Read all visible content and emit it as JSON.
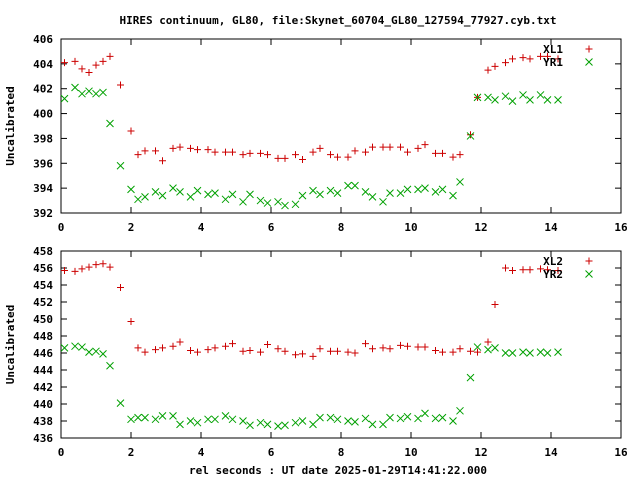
{
  "title": "HIRES continuum, GL80, file:Skynet_60704_GL80_127594_77927.cyb.txt",
  "xlabel": "rel seconds : UT date 2025-01-29T14:41:22.000",
  "colors": {
    "red": "#cc0000",
    "green": "#00a000",
    "axis": "#000000"
  },
  "chart_data": [
    {
      "type": "scatter",
      "ylabel": "Uncalibrated",
      "xlim": [
        0,
        16
      ],
      "ylim": [
        392,
        406
      ],
      "xticks": [
        0,
        2,
        4,
        6,
        8,
        10,
        12,
        14,
        16
      ],
      "yticks": [
        392,
        394,
        396,
        398,
        400,
        402,
        404,
        406
      ],
      "legend_position": "top-right",
      "series": [
        {
          "name": "XL1",
          "marker": "plus",
          "color": "#cc0000",
          "x": [
            0.1,
            0.4,
            0.6,
            0.8,
            1.0,
            1.2,
            1.4,
            1.7,
            2.0,
            2.2,
            2.4,
            2.7,
            2.9,
            3.2,
            3.4,
            3.7,
            3.9,
            4.2,
            4.4,
            4.7,
            4.9,
            5.2,
            5.4,
            5.7,
            5.9,
            6.2,
            6.4,
            6.7,
            6.9,
            7.2,
            7.4,
            7.7,
            7.9,
            8.2,
            8.4,
            8.7,
            8.9,
            9.2,
            9.4,
            9.7,
            9.9,
            10.2,
            10.4,
            10.7,
            10.9,
            11.2,
            11.4,
            11.7,
            11.9,
            12.2,
            12.4,
            12.7,
            12.9,
            13.2,
            13.4,
            13.7,
            13.9,
            14.2
          ],
          "y": [
            404.1,
            404.2,
            403.6,
            403.3,
            403.9,
            404.2,
            404.6,
            402.3,
            398.6,
            396.7,
            397.0,
            397.0,
            396.2,
            397.2,
            397.3,
            397.2,
            397.1,
            397.1,
            396.9,
            396.9,
            396.9,
            396.7,
            396.8,
            396.8,
            396.7,
            396.4,
            396.4,
            396.7,
            396.3,
            396.9,
            397.2,
            396.7,
            396.5,
            396.5,
            397.0,
            396.9,
            397.3,
            397.3,
            397.3,
            397.3,
            396.9,
            397.2,
            397.5,
            396.8,
            396.8,
            396.5,
            396.7,
            398.3,
            401.3,
            403.5,
            403.8,
            404.1,
            404.4,
            404.5,
            404.4,
            404.6,
            404.6,
            404.4
          ]
        },
        {
          "name": "YR1",
          "marker": "cross",
          "color": "#00a000",
          "x": [
            0.1,
            0.4,
            0.6,
            0.8,
            1.0,
            1.2,
            1.4,
            1.7,
            2.0,
            2.2,
            2.4,
            2.7,
            2.9,
            3.2,
            3.4,
            3.7,
            3.9,
            4.2,
            4.4,
            4.7,
            4.9,
            5.2,
            5.4,
            5.7,
            5.9,
            6.2,
            6.4,
            6.7,
            6.9,
            7.2,
            7.4,
            7.7,
            7.9,
            8.2,
            8.4,
            8.7,
            8.9,
            9.2,
            9.4,
            9.7,
            9.9,
            10.2,
            10.4,
            10.7,
            10.9,
            11.2,
            11.4,
            11.7,
            11.9,
            12.2,
            12.4,
            12.7,
            12.9,
            13.2,
            13.4,
            13.7,
            13.9,
            14.2
          ],
          "y": [
            401.2,
            402.1,
            401.6,
            401.8,
            401.6,
            401.7,
            399.2,
            395.8,
            393.9,
            393.1,
            393.3,
            393.7,
            393.4,
            394.0,
            393.7,
            393.3,
            393.8,
            393.5,
            393.6,
            393.1,
            393.5,
            392.9,
            393.5,
            393.0,
            392.8,
            392.9,
            392.6,
            392.7,
            393.4,
            393.8,
            393.5,
            393.8,
            393.6,
            394.2,
            394.2,
            393.7,
            393.3,
            392.9,
            393.6,
            393.6,
            393.9,
            393.9,
            394.0,
            393.7,
            393.9,
            393.4,
            394.5,
            398.2,
            401.3,
            401.3,
            401.1,
            401.4,
            401.0,
            401.5,
            401.1,
            401.5,
            401.1,
            401.1
          ]
        }
      ]
    },
    {
      "type": "scatter",
      "ylabel": "Uncalibrated",
      "xlim": [
        0,
        16
      ],
      "ylim": [
        436,
        458
      ],
      "xticks": [
        0,
        2,
        4,
        6,
        8,
        10,
        12,
        14,
        16
      ],
      "yticks": [
        436,
        438,
        440,
        442,
        444,
        446,
        448,
        450,
        452,
        454,
        456,
        458
      ],
      "legend_position": "top-right",
      "series": [
        {
          "name": "XL2",
          "marker": "plus",
          "color": "#cc0000",
          "x": [
            0.1,
            0.4,
            0.6,
            0.8,
            1.0,
            1.2,
            1.4,
            1.7,
            2.0,
            2.2,
            2.4,
            2.7,
            2.9,
            3.2,
            3.4,
            3.7,
            3.9,
            4.2,
            4.4,
            4.7,
            4.9,
            5.2,
            5.4,
            5.7,
            5.9,
            6.2,
            6.4,
            6.7,
            6.9,
            7.2,
            7.4,
            7.7,
            7.9,
            8.2,
            8.4,
            8.7,
            8.9,
            9.2,
            9.4,
            9.7,
            9.9,
            10.2,
            10.4,
            10.7,
            10.9,
            11.2,
            11.4,
            11.7,
            11.9,
            12.2,
            12.4,
            12.7,
            12.9,
            13.2,
            13.4,
            13.7,
            13.9,
            14.2
          ],
          "y": [
            455.7,
            455.6,
            455.9,
            456.1,
            456.4,
            456.5,
            456.1,
            453.7,
            449.7,
            446.6,
            446.1,
            446.4,
            446.6,
            446.8,
            447.3,
            446.3,
            446.1,
            446.4,
            446.6,
            446.8,
            447.1,
            446.2,
            446.3,
            446.1,
            447.0,
            446.5,
            446.2,
            445.8,
            445.9,
            445.6,
            446.5,
            446.2,
            446.2,
            446.1,
            446.0,
            447.1,
            446.5,
            446.6,
            446.5,
            446.9,
            446.8,
            446.7,
            446.7,
            446.3,
            446.1,
            446.1,
            446.5,
            446.2,
            446.1,
            447.3,
            451.7,
            456.0,
            455.7,
            455.8,
            455.8,
            455.9,
            455.8,
            455.7
          ]
        },
        {
          "name": "YR2",
          "marker": "cross",
          "color": "#00a000",
          "x": [
            0.1,
            0.4,
            0.6,
            0.8,
            1.0,
            1.2,
            1.4,
            1.7,
            2.0,
            2.2,
            2.4,
            2.7,
            2.9,
            3.2,
            3.4,
            3.7,
            3.9,
            4.2,
            4.4,
            4.7,
            4.9,
            5.2,
            5.4,
            5.7,
            5.9,
            6.2,
            6.4,
            6.7,
            6.9,
            7.2,
            7.4,
            7.7,
            7.9,
            8.2,
            8.4,
            8.7,
            8.9,
            9.2,
            9.4,
            9.7,
            9.9,
            10.2,
            10.4,
            10.7,
            10.9,
            11.2,
            11.4,
            11.7,
            11.9,
            12.2,
            12.4,
            12.7,
            12.9,
            13.2,
            13.4,
            13.7,
            13.9,
            14.2
          ],
          "y": [
            446.6,
            446.8,
            446.7,
            446.1,
            446.2,
            445.9,
            444.5,
            440.1,
            438.2,
            438.4,
            438.4,
            438.2,
            438.6,
            438.6,
            437.6,
            438.0,
            437.8,
            438.2,
            438.2,
            438.6,
            438.2,
            438.0,
            437.5,
            437.8,
            437.6,
            437.4,
            437.5,
            437.8,
            438.0,
            437.6,
            438.4,
            438.4,
            438.2,
            438.0,
            437.9,
            438.3,
            437.6,
            437.6,
            438.4,
            438.3,
            438.5,
            438.3,
            438.9,
            438.3,
            438.4,
            438.0,
            439.2,
            443.1,
            446.7,
            446.4,
            446.6,
            446.0,
            446.0,
            446.1,
            446.0,
            446.1,
            446.0,
            446.1
          ]
        }
      ]
    }
  ]
}
